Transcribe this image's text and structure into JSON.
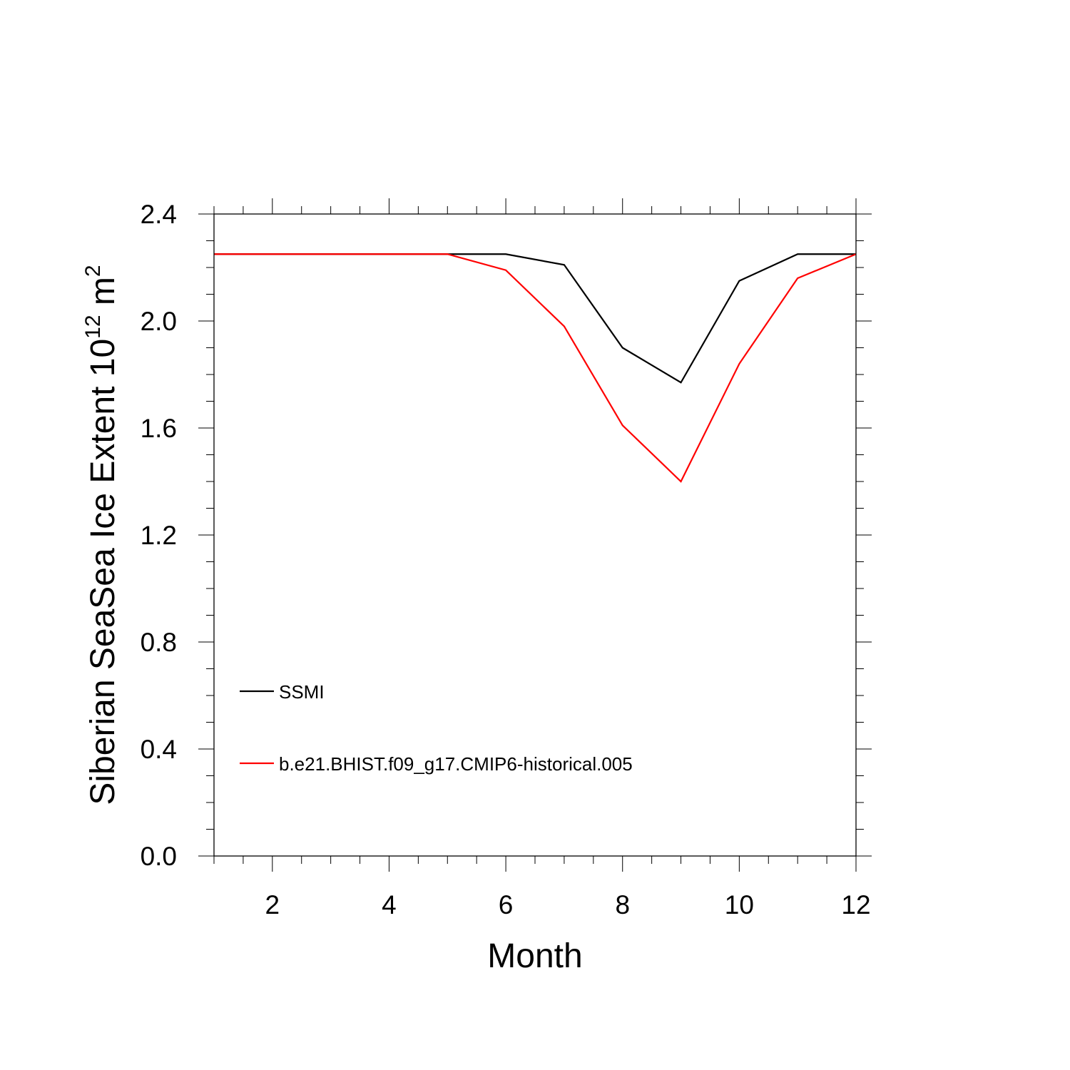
{
  "chart_data": {
    "type": "line",
    "xlabel": "Month",
    "ylabel": {
      "main": "Siberian SeaSea Ice Extent 10",
      "exponent": "12",
      "unit": " m",
      "unit_exponent": "2"
    },
    "xlim": [
      1,
      12
    ],
    "ylim": [
      0.0,
      2.4
    ],
    "x_ticks": [
      2,
      4,
      6,
      8,
      10,
      12
    ],
    "x_tick_labels": [
      "2",
      "4",
      "6",
      "8",
      "10",
      "12"
    ],
    "y_ticks": [
      0.0,
      0.4,
      0.8,
      1.2,
      1.6,
      2.0,
      2.4
    ],
    "y_tick_labels": [
      "0.0",
      "0.4",
      "0.8",
      "1.2",
      "1.6",
      "2.0",
      "2.4"
    ],
    "grid": false,
    "legend_position": "lower-left",
    "x": [
      1,
      2,
      3,
      4,
      5,
      6,
      7,
      8,
      9,
      10,
      11,
      12
    ],
    "series": [
      {
        "name": "SSMI",
        "color": "#000000",
        "values": [
          2.25,
          2.25,
          2.25,
          2.25,
          2.25,
          2.25,
          2.21,
          1.9,
          1.77,
          2.15,
          2.25,
          2.25
        ]
      },
      {
        "name": "b.e21.BHIST.f09_g17.CMIP6-historical.005",
        "color": "#ff0000",
        "values": [
          2.25,
          2.25,
          2.25,
          2.25,
          2.25,
          2.19,
          1.98,
          1.61,
          1.4,
          1.84,
          2.16,
          2.25
        ]
      }
    ]
  }
}
